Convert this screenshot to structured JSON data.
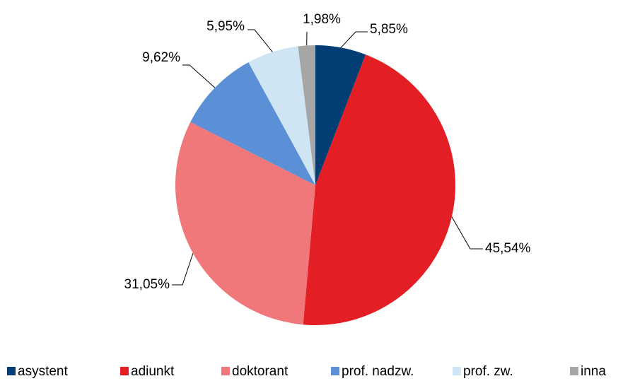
{
  "chart_data": {
    "type": "pie",
    "categories": [
      "asystent",
      "adiunkt",
      "doktorant",
      "prof. nadzw.",
      "prof. zw.",
      "inna"
    ],
    "values": [
      5.85,
      45.54,
      31.05,
      9.62,
      5.95,
      1.98
    ],
    "value_labels": [
      "5,85%",
      "45,54%",
      "31,05%",
      "9,62%",
      "5,95%",
      "1,98%"
    ],
    "colors": [
      "#023e73",
      "#e31e24",
      "#f0777a",
      "#5b8fd6",
      "#d0e5f3",
      "#a6a6a6"
    ],
    "legend": "bottom"
  }
}
